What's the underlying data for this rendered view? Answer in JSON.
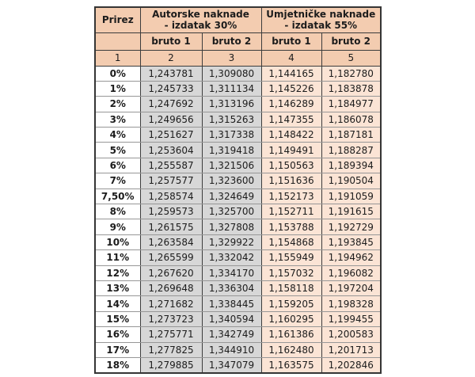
{
  "table": {
    "colors": {
      "header_bg": "#f3ccb0",
      "gray_column_bg": "#d7d7d7",
      "peach_column_bg": "#fbe4d5",
      "prirez_column_bg": "#ffffff",
      "outer_border": "#353535",
      "inner_border": "#3c3c3c",
      "row_separator": "#979797",
      "text": "#1c1c1c"
    },
    "header": {
      "prirez": "Prirez",
      "group1_line1": "Autorske naknade",
      "group1_line2": "- izdatak 30%",
      "group2_line1": "Umjetničke naknade",
      "group2_line2": "- izdatak 55%",
      "sub1": "bruto 1",
      "sub2": "bruto 2",
      "sub3": "bruto 1",
      "sub4": "bruto 2",
      "index1": "1",
      "index2": "2",
      "index3": "3",
      "index4": "4",
      "index5": "5"
    },
    "rows": [
      [
        "0%",
        "1,243781",
        "1,309080",
        "1,144165",
        "1,182780"
      ],
      [
        "1%",
        "1,245733",
        "1,311134",
        "1,145226",
        "1,183878"
      ],
      [
        "2%",
        "1,247692",
        "1,313196",
        "1,146289",
        "1,184977"
      ],
      [
        "3%",
        "1,249656",
        "1,315263",
        "1,147355",
        "1,186078"
      ],
      [
        "4%",
        "1,251627",
        "1,317338",
        "1,148422",
        "1,187181"
      ],
      [
        "5%",
        "1,253604",
        "1,319418",
        "1,149491",
        "1,188287"
      ],
      [
        "6%",
        "1,255587",
        "1,321506",
        "1,150563",
        "1,189394"
      ],
      [
        "7%",
        "1,257577",
        "1,323600",
        "1,151636",
        "1,190504"
      ],
      [
        "7,50%",
        "1,258574",
        "1,324649",
        "1,152173",
        "1,191059"
      ],
      [
        "8%",
        "1,259573",
        "1,325700",
        "1,152711",
        "1,191615"
      ],
      [
        "9%",
        "1,261575",
        "1,327808",
        "1,153788",
        "1,192729"
      ],
      [
        "10%",
        "1,263584",
        "1,329922",
        "1,154868",
        "1,193845"
      ],
      [
        "11%",
        "1,265599",
        "1,332042",
        "1,155949",
        "1,194962"
      ],
      [
        "12%",
        "1,267620",
        "1,334170",
        "1,157032",
        "1,196082"
      ],
      [
        "13%",
        "1,269648",
        "1,336304",
        "1,158118",
        "1,197204"
      ],
      [
        "14%",
        "1,271682",
        "1,338445",
        "1,159205",
        "1,198328"
      ],
      [
        "15%",
        "1,273723",
        "1,340594",
        "1,160295",
        "1,199455"
      ],
      [
        "16%",
        "1,275771",
        "1,342749",
        "1,161386",
        "1,200583"
      ],
      [
        "17%",
        "1,277825",
        "1,344910",
        "1,162480",
        "1,201713"
      ],
      [
        "18%",
        "1,279885",
        "1,347079",
        "1,163575",
        "1,202846"
      ]
    ]
  }
}
